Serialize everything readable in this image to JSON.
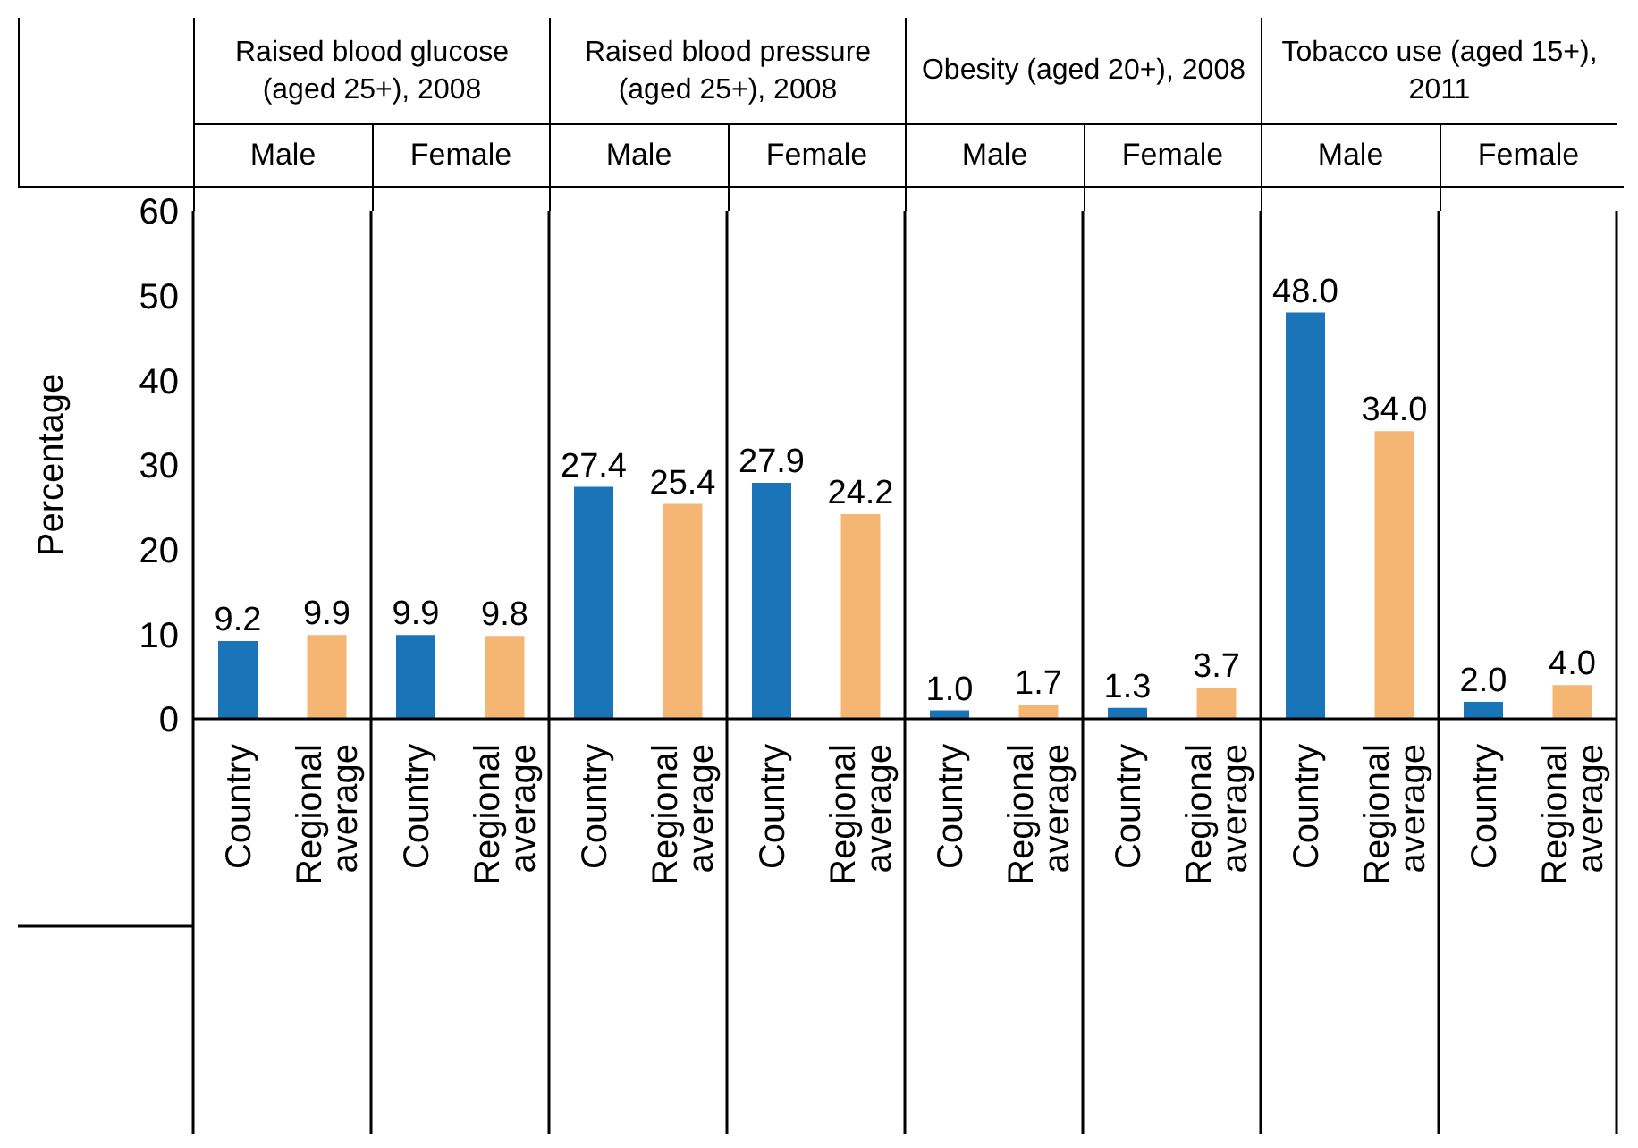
{
  "chart_data": {
    "type": "bar",
    "ylabel": "Percentage",
    "categories": [
      "Country",
      "Regional average",
      "Country",
      "Regional average",
      "Country",
      "Regional average",
      "Country",
      "Regional average",
      "Country",
      "Regional average",
      "Country",
      "Regional average",
      "Country",
      "Regional average",
      "Country",
      "Regional average"
    ],
    "values": [
      9.2,
      9.9,
      9.9,
      9.8,
      27.4,
      25.4,
      27.9,
      24.2,
      1.0,
      1.7,
      1.3,
      3.7,
      48.0,
      34.0,
      2.0,
      4.0
    ],
    "value_labels": [
      "9.2",
      "9.9",
      "9.9",
      "9.8",
      "27.4",
      "25.4",
      "27.9",
      "24.2",
      "1.0",
      "1.7",
      "1.3",
      "3.7",
      "48.0",
      "34.0",
      "2.0",
      "4.0"
    ],
    "colors": [
      "#1a75b8",
      "#f5b673",
      "#1a75b8",
      "#f5b673",
      "#1a75b8",
      "#f5b673",
      "#1a75b8",
      "#f5b673",
      "#1a75b8",
      "#f5b673",
      "#1a75b8",
      "#f5b673",
      "#1a75b8",
      "#f5b673",
      "#1a75b8",
      "#f5b673"
    ],
    "ylim": [
      0,
      60
    ],
    "yticks": [
      0,
      10,
      20,
      30,
      40,
      50,
      60
    ],
    "annotations": [
      "Raised blood glucose (aged 25+), 2008",
      "Raised blood pressure (aged 25+), 2008",
      "Obesity (aged 20+), 2008",
      "Tobacco use (aged 15+), 2011",
      "Male",
      "Female",
      "Male",
      "Female",
      "Male",
      "Female",
      "Male",
      "Female"
    ]
  }
}
